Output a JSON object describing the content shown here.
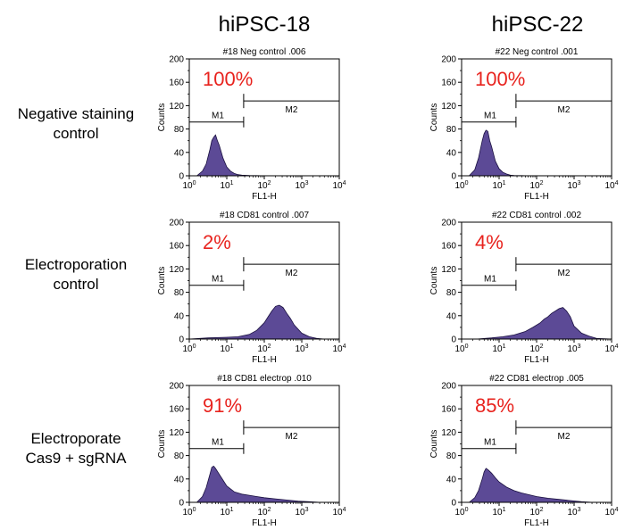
{
  "columns": [
    "hiPSC-18",
    "hiPSC-22"
  ],
  "rows": [
    {
      "line1": "Negative staining",
      "line2": "control"
    },
    {
      "line1": "Electroporation",
      "line2": "control"
    },
    {
      "line1": "Electroporate",
      "line2": "Cas9 + sgRNA"
    }
  ],
  "colors": {
    "histogram_fill": "#5c4a96",
    "histogram_stroke": "#1a1040",
    "percent_text": "#e8231e"
  },
  "axis": {
    "xlabel": "FL1-H",
    "ylabel": "Counts",
    "yticks": [
      "0",
      "40",
      "80",
      "120",
      "160",
      "200"
    ],
    "xtick_base": "10",
    "xtick_exponents": [
      "0",
      "1",
      "2",
      "3",
      "4"
    ]
  },
  "chart_data": [
    {
      "type": "area",
      "title": "#18 Neg control .006",
      "percent": "100%",
      "gate1": "M1",
      "gate2": "M2",
      "x": [
        0.0,
        0.2,
        0.35,
        0.45,
        0.55,
        0.6,
        0.65,
        0.7,
        0.75,
        0.8,
        0.9,
        1.0,
        1.1,
        1.2,
        1.3,
        1.4,
        1.6,
        1.8,
        2.0,
        2.5,
        3.0,
        4.0
      ],
      "y": [
        0,
        0,
        8,
        20,
        45,
        60,
        66,
        70,
        60,
        52,
        30,
        15,
        8,
        4,
        2,
        1,
        0.5,
        0.3,
        0,
        0,
        0,
        0
      ],
      "ylim": [
        0,
        200
      ],
      "xlim": [
        0,
        4
      ],
      "gate_m2_start": 1.45
    },
    {
      "type": "area",
      "title": "#22 Neg control .001",
      "percent": "100%",
      "gate1": "M1",
      "gate2": "M2",
      "x": [
        0.0,
        0.2,
        0.35,
        0.45,
        0.55,
        0.6,
        0.65,
        0.7,
        0.75,
        0.8,
        0.9,
        1.0,
        1.1,
        1.2,
        1.3,
        1.4,
        1.6,
        1.8,
        2.0,
        2.5,
        3.0,
        4.0
      ],
      "y": [
        0,
        0,
        10,
        30,
        60,
        72,
        78,
        76,
        60,
        50,
        25,
        12,
        6,
        3,
        1,
        0.5,
        0.3,
        0,
        0,
        0,
        0,
        0
      ],
      "ylim": [
        0,
        200
      ],
      "xlim": [
        0,
        4
      ],
      "gate_m2_start": 1.45
    },
    {
      "type": "area",
      "title": "#18 CD81 control .007",
      "percent": "2%",
      "gate1": "M1",
      "gate2": "M2",
      "x": [
        0.0,
        0.5,
        1.0,
        1.3,
        1.6,
        1.8,
        2.0,
        2.1,
        2.2,
        2.3,
        2.4,
        2.5,
        2.6,
        2.7,
        2.8,
        3.0,
        3.2,
        3.4,
        3.6,
        4.0
      ],
      "y": [
        0,
        2,
        3,
        4,
        8,
        15,
        28,
        38,
        48,
        56,
        58,
        54,
        44,
        35,
        24,
        10,
        4,
        1,
        0,
        0
      ],
      "ylim": [
        0,
        200
      ],
      "xlim": [
        0,
        4
      ],
      "gate_m2_start": 1.45
    },
    {
      "type": "area",
      "title": "#22 CD81 control .002",
      "percent": "4%",
      "gate1": "M1",
      "gate2": "M2",
      "x": [
        0.0,
        0.4,
        0.8,
        1.1,
        1.4,
        1.7,
        1.9,
        2.1,
        2.2,
        2.3,
        2.4,
        2.5,
        2.6,
        2.7,
        2.8,
        2.9,
        3.0,
        3.2,
        3.4,
        3.6,
        4.0
      ],
      "y": [
        0,
        0,
        2,
        4,
        7,
        13,
        20,
        28,
        34,
        38,
        44,
        48,
        52,
        54,
        48,
        38,
        22,
        10,
        5,
        1,
        0
      ],
      "ylim": [
        0,
        200
      ],
      "xlim": [
        0,
        4
      ],
      "gate_m2_start": 1.45
    },
    {
      "type": "area",
      "title": "#18 CD81 electrop .010",
      "percent": "91%",
      "gate1": "M1",
      "gate2": "M2",
      "x": [
        0.0,
        0.2,
        0.35,
        0.45,
        0.55,
        0.6,
        0.65,
        0.7,
        0.8,
        0.9,
        1.0,
        1.2,
        1.4,
        1.6,
        1.8,
        2.0,
        2.3,
        2.6,
        2.9,
        3.2,
        3.5,
        4.0
      ],
      "y": [
        0,
        0,
        10,
        25,
        48,
        60,
        62,
        58,
        48,
        38,
        28,
        18,
        14,
        12,
        10,
        8,
        6,
        4,
        2,
        1,
        0,
        0
      ],
      "ylim": [
        0,
        200
      ],
      "xlim": [
        0,
        4
      ],
      "gate_m2_start": 1.45
    },
    {
      "type": "area",
      "title": "#22 CD81 electrop .005",
      "percent": "85%",
      "gate1": "M1",
      "gate2": "M2",
      "x": [
        0.0,
        0.2,
        0.35,
        0.45,
        0.55,
        0.6,
        0.65,
        0.7,
        0.8,
        0.9,
        1.0,
        1.2,
        1.4,
        1.6,
        1.8,
        2.0,
        2.3,
        2.6,
        2.9,
        3.2,
        3.5,
        4.0
      ],
      "y": [
        0,
        0,
        8,
        20,
        40,
        52,
        58,
        56,
        50,
        42,
        35,
        26,
        20,
        16,
        13,
        10,
        7,
        5,
        3,
        1,
        0,
        0
      ],
      "ylim": [
        0,
        200
      ],
      "xlim": [
        0,
        4
      ],
      "gate_m2_start": 1.45
    }
  ]
}
